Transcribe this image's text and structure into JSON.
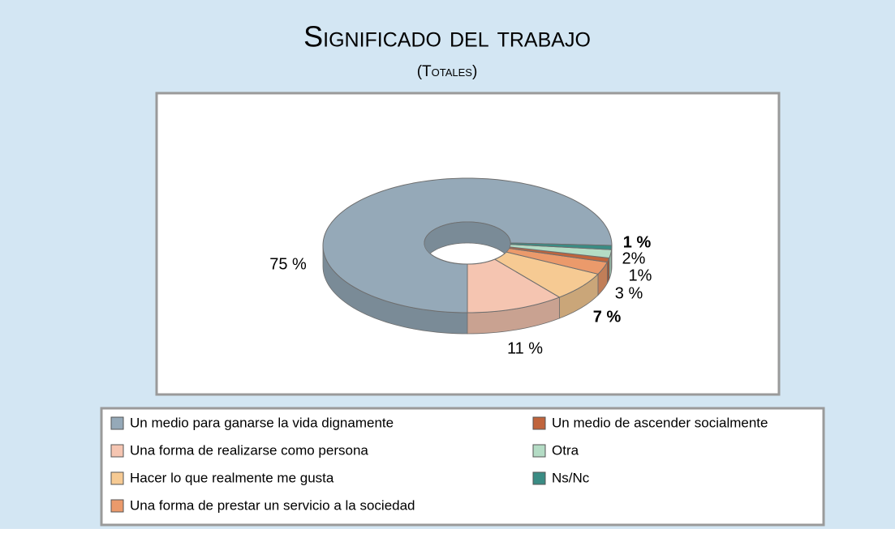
{
  "chart_data": {
    "type": "pie",
    "title": "Significado del trabajo",
    "subtitle": "(Totales)",
    "categories": [
      "Un medio para ganarse la vida dignamente",
      "Una forma de realizarse como persona",
      "Hacer lo que realmente me gusta",
      "Una forma de prestar un servicio a la sociedad",
      "Un medio de ascender socialmente",
      "Otra",
      "Ns/Nc"
    ],
    "values": [
      75,
      11,
      7,
      3,
      1,
      2,
      1
    ],
    "value_labels": [
      "75 %",
      "11 %",
      "7 %",
      "3 %",
      "1%",
      "2%",
      "1 %"
    ],
    "colors": [
      "#95a9b8",
      "#f5c5b1",
      "#f6ca93",
      "#eb9a6b",
      "#c0643c",
      "#b4dcc5",
      "#3a8c84"
    ],
    "donut": true,
    "three_d": true
  }
}
